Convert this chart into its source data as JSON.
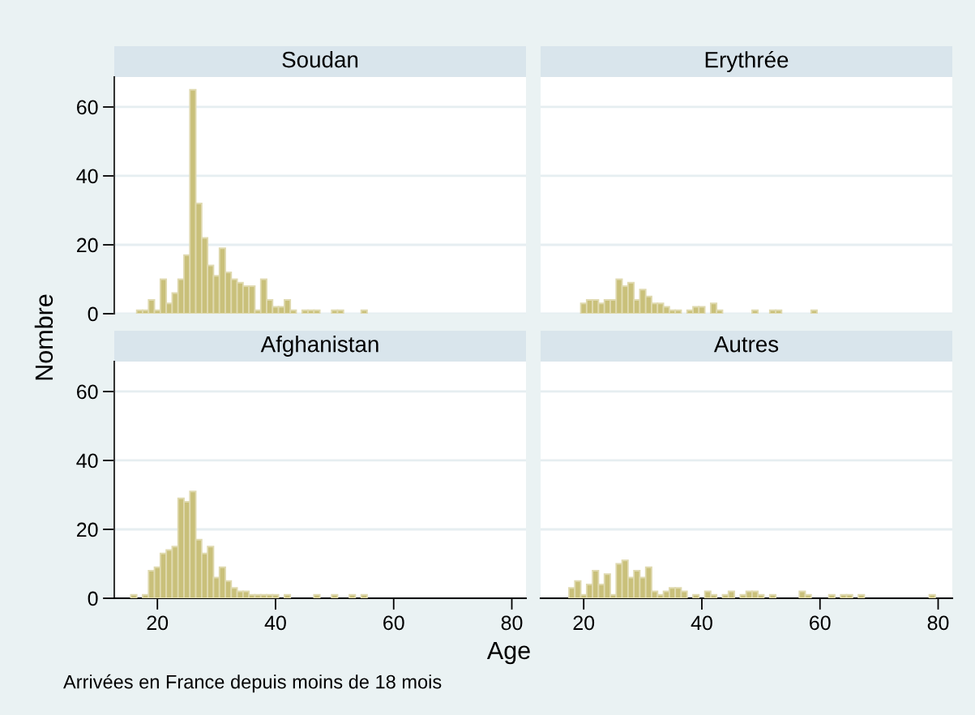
{
  "chart_data": [
    {
      "type": "histogram",
      "title": "Soudan",
      "ylabel": "Nombre",
      "color": "#c9c07a",
      "bins": [
        15.5,
        16.5,
        17.5,
        18.5,
        19.5,
        20.5,
        21.5,
        22.5,
        23.5,
        24.5,
        25.5,
        26.5,
        27.5,
        28.5,
        29.5,
        30.5,
        31.5,
        32.5,
        33.5,
        34.5,
        35.5,
        36.5,
        37.5,
        38.5,
        39.5,
        40.5,
        41.5,
        42.5,
        43.5,
        44.5,
        45.5,
        46.5,
        47.5,
        48.5,
        49.5,
        50.5,
        51.5,
        52.5,
        53.5,
        54.5,
        55.5,
        56.5,
        57.5,
        58.5,
        59.5,
        60.5,
        61.5,
        62.5,
        63.5,
        64.5,
        65.5,
        66.5,
        67.5,
        68.5,
        69.5,
        70.5,
        71.5,
        72.5,
        73.5,
        74.5,
        75.5,
        76.5,
        77.5,
        78.5,
        79.5
      ],
      "values": [
        0,
        1,
        1,
        4,
        1,
        10,
        3,
        6,
        10,
        17,
        65,
        32,
        22,
        14,
        11,
        19,
        12,
        10,
        9,
        8,
        8,
        1,
        10,
        4,
        2,
        2,
        4,
        1,
        0,
        1,
        1,
        1,
        0,
        0,
        1,
        1,
        0,
        0,
        0,
        1,
        0,
        0,
        0,
        0,
        0,
        0,
        0,
        0,
        0,
        0,
        0,
        0,
        0,
        0,
        0,
        0,
        0,
        0,
        0,
        0,
        0,
        0,
        0,
        0
      ],
      "xlim": [
        12.7,
        82.4
      ],
      "xticks": [
        20,
        40,
        60,
        80
      ],
      "ylim": [
        0,
        68.7
      ],
      "yticks": [
        0,
        20,
        40,
        60
      ],
      "grid": "y",
      "tick_labels": "y"
    },
    {
      "type": "histogram",
      "title": "Erythrée",
      "color": "#c9c07a",
      "bins": [
        15.5,
        16.5,
        17.5,
        18.5,
        19.5,
        20.5,
        21.5,
        22.5,
        23.5,
        24.5,
        25.5,
        26.5,
        27.5,
        28.5,
        29.5,
        30.5,
        31.5,
        32.5,
        33.5,
        34.5,
        35.5,
        36.5,
        37.5,
        38.5,
        39.5,
        40.5,
        41.5,
        42.5,
        43.5,
        44.5,
        45.5,
        46.5,
        47.5,
        48.5,
        49.5,
        50.5,
        51.5,
        52.5,
        53.5,
        54.5,
        55.5,
        56.5,
        57.5,
        58.5,
        59.5,
        60.5,
        61.5,
        62.5,
        63.5,
        64.5,
        65.5,
        66.5,
        67.5,
        68.5,
        69.5,
        70.5,
        71.5,
        72.5,
        73.5,
        74.5,
        75.5,
        76.5,
        77.5,
        78.5,
        79.5
      ],
      "values": [
        0,
        0,
        0,
        0,
        3,
        4,
        4,
        3,
        4,
        4,
        10,
        8,
        9,
        4,
        7,
        5,
        3,
        3,
        2,
        1,
        1,
        0,
        1,
        2,
        2,
        0,
        3,
        1,
        0,
        0,
        0,
        0,
        0,
        1,
        0,
        0,
        1,
        1,
        0,
        0,
        0,
        0,
        0,
        1,
        0,
        0,
        0,
        0,
        0,
        0,
        0,
        0,
        0,
        0,
        0,
        0,
        0,
        0,
        0,
        0,
        0,
        0,
        0,
        0
      ],
      "xlim": [
        12.7,
        82.4
      ],
      "xticks": [
        20,
        40,
        60,
        80
      ],
      "ylim": [
        0,
        68.7
      ],
      "yticks": [
        0,
        20,
        40,
        60
      ],
      "grid": "y",
      "tick_labels": false
    },
    {
      "type": "histogram",
      "title": "Afghanistan",
      "xlabel": "Age",
      "annotations": [
        "Arrivées en France depuis moins de 18 mois"
      ],
      "color": "#c9c07a",
      "bins": [
        15.5,
        16.5,
        17.5,
        18.5,
        19.5,
        20.5,
        21.5,
        22.5,
        23.5,
        24.5,
        25.5,
        26.5,
        27.5,
        28.5,
        29.5,
        30.5,
        31.5,
        32.5,
        33.5,
        34.5,
        35.5,
        36.5,
        37.5,
        38.5,
        39.5,
        40.5,
        41.5,
        42.5,
        43.5,
        44.5,
        45.5,
        46.5,
        47.5,
        48.5,
        49.5,
        50.5,
        51.5,
        52.5,
        53.5,
        54.5,
        55.5,
        56.5,
        57.5,
        58.5,
        59.5,
        60.5,
        61.5,
        62.5,
        63.5,
        64.5,
        65.5,
        66.5,
        67.5,
        68.5,
        69.5,
        70.5,
        71.5,
        72.5,
        73.5,
        74.5,
        75.5,
        76.5,
        77.5,
        78.5,
        79.5
      ],
      "values": [
        1,
        0,
        1,
        8,
        9,
        13,
        14,
        15,
        29,
        28,
        31,
        17,
        13,
        15,
        6,
        9,
        5,
        3,
        2,
        2,
        1,
        1,
        1,
        1,
        1,
        0,
        1,
        0,
        0,
        0,
        0,
        1,
        0,
        0,
        1,
        0,
        0,
        1,
        0,
        1,
        0,
        0,
        0,
        0,
        0,
        0,
        0,
        0,
        0,
        0,
        0,
        0,
        0,
        0,
        0,
        0,
        0,
        0,
        0,
        0,
        0,
        0,
        0,
        0
      ],
      "xlim": [
        12.7,
        82.4
      ],
      "xticks": [
        20,
        40,
        60,
        80
      ],
      "ylim": [
        0,
        68.7
      ],
      "yticks": [
        0,
        20,
        40,
        60
      ],
      "grid": "y"
    },
    {
      "type": "histogram",
      "title": "Autres",
      "color": "#c9c07a",
      "bins": [
        15.5,
        16.5,
        17.5,
        18.5,
        19.5,
        20.5,
        21.5,
        22.5,
        23.5,
        24.5,
        25.5,
        26.5,
        27.5,
        28.5,
        29.5,
        30.5,
        31.5,
        32.5,
        33.5,
        34.5,
        35.5,
        36.5,
        37.5,
        38.5,
        39.5,
        40.5,
        41.5,
        42.5,
        43.5,
        44.5,
        45.5,
        46.5,
        47.5,
        48.5,
        49.5,
        50.5,
        51.5,
        52.5,
        53.5,
        54.5,
        55.5,
        56.5,
        57.5,
        58.5,
        59.5,
        60.5,
        61.5,
        62.5,
        63.5,
        64.5,
        65.5,
        66.5,
        67.5,
        68.5,
        69.5,
        70.5,
        71.5,
        72.5,
        73.5,
        74.5,
        75.5,
        76.5,
        77.5,
        78.5,
        79.5
      ],
      "values": [
        0,
        0,
        3,
        5,
        1,
        4,
        8,
        4,
        7,
        1,
        10,
        11,
        6,
        8,
        6,
        9,
        2,
        1,
        2,
        3,
        3,
        2,
        0,
        1,
        0,
        2,
        1,
        0,
        1,
        2,
        0,
        1,
        2,
        2,
        1,
        0,
        1,
        0,
        0,
        0,
        0,
        2,
        1,
        0,
        0,
        0,
        1,
        0,
        1,
        1,
        0,
        1,
        0,
        0,
        0,
        0,
        0,
        0,
        0,
        0,
        0,
        0,
        0,
        1
      ],
      "xlim": [
        12.7,
        82.4
      ],
      "xticks": [
        20,
        40,
        60,
        80
      ],
      "ylim": [
        0,
        68.7
      ],
      "yticks": [
        0,
        20,
        40,
        60
      ],
      "grid": "y",
      "tick_labels": "x"
    }
  ]
}
